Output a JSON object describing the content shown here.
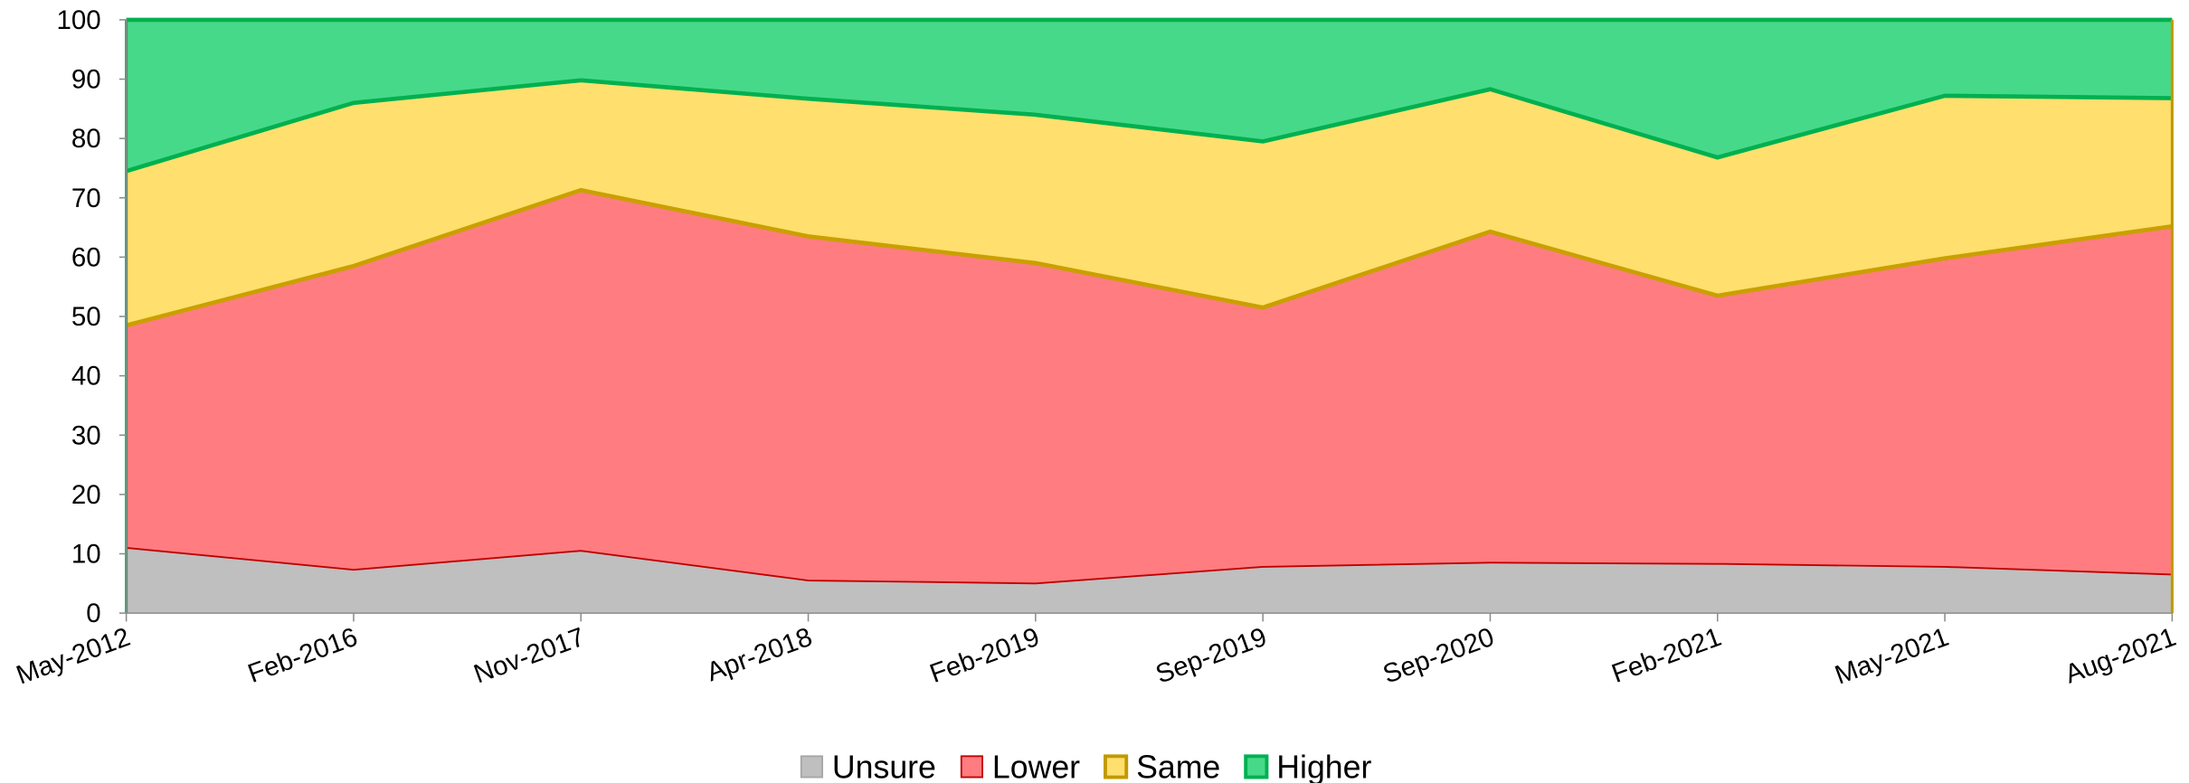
{
  "chart_data": {
    "type": "area",
    "stacked": true,
    "categories": [
      "May-2012",
      "Feb-2016",
      "Nov-2017",
      "Apr-2018",
      "Feb-2019",
      "Sep-2019",
      "Sep-2020",
      "Feb-2021",
      "May-2021",
      "Aug-2021"
    ],
    "series": [
      {
        "name": "Unsure",
        "color": "#bfbfbf",
        "line_color": "#c00000",
        "values": [
          11,
          7.3,
          10.5,
          5.5,
          5,
          7.8,
          8.5,
          8.3,
          7.8,
          6.5
        ]
      },
      {
        "name": "Lower",
        "color": "#ff7c80",
        "line_color": "#c9a000",
        "values": [
          37.5,
          51.2,
          60.8,
          58,
          54,
          43.7,
          55.8,
          45.2,
          52,
          58.7
        ]
      },
      {
        "name": "Same",
        "color": "#ffdf6d",
        "line_color": "#00b050",
        "values": [
          26,
          27.5,
          18.5,
          23.2,
          25,
          28,
          24,
          23.3,
          27.4,
          21.6
        ]
      },
      {
        "name": "Higher",
        "color": "#47d98a",
        "line_color": "#00b050",
        "values": [
          25.5,
          14,
          10.2,
          13.3,
          16,
          20.5,
          11.7,
          23.2,
          12.8,
          13.2
        ]
      }
    ],
    "legend_swatch_borders": [
      "#a6a6a6",
      "#c00000",
      "#c09a00",
      "#00b050"
    ],
    "ylim": [
      0,
      100
    ],
    "yticks": [
      0,
      10,
      20,
      30,
      40,
      50,
      60,
      70,
      80,
      90,
      100
    ],
    "grid": false,
    "legend": "bottom"
  }
}
